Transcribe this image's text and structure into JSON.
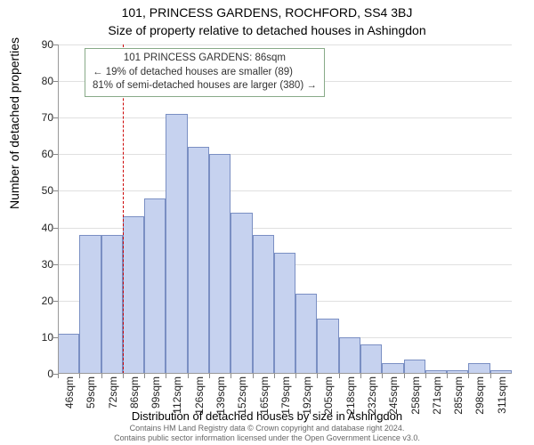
{
  "title_line1": "101, PRINCESS GARDENS, ROCHFORD, SS4 3BJ",
  "title_line2": "Size of property relative to detached houses in Ashingdon",
  "y_axis_label": "Number of detached properties",
  "x_axis_label": "Distribution of detached houses by size in Ashingdon",
  "chart": {
    "type": "histogram",
    "background_color": "#ffffff",
    "bar_fill_color": "#c6d2ef",
    "bar_border_color": "#7a8fc3",
    "grid_color": "#cccccc",
    "axis_color": "#999999",
    "marker_color": "#cc0000",
    "annotation_border_color": "#88aa88",
    "ylim": [
      0,
      90
    ],
    "ytick_step": 10,
    "x_tick_labels": [
      "46sqm",
      "59sqm",
      "72sqm",
      "86sqm",
      "99sqm",
      "112sqm",
      "126sqm",
      "139sqm",
      "152sqm",
      "165sqm",
      "179sqm",
      "192sqm",
      "205sqm",
      "218sqm",
      "232sqm",
      "245sqm",
      "258sqm",
      "271sqm",
      "285sqm",
      "298sqm",
      "311sqm"
    ],
    "x_tick_label_rotation_deg": -90,
    "bar_values": [
      11,
      38,
      38,
      43,
      48,
      71,
      62,
      60,
      44,
      38,
      33,
      22,
      15,
      10,
      8,
      3,
      4,
      1,
      1,
      3,
      1
    ],
    "marker_x_index": 3,
    "title_fontsize": 14,
    "axis_label_fontsize": 14,
    "tick_fontsize": 12
  },
  "annotation": {
    "line1": "101 PRINCESS GARDENS: 86sqm",
    "line2": "← 19% of detached houses are smaller (89)",
    "line3": "81% of semi-detached houses are larger (380) →"
  },
  "footnote_line1": "Contains HM Land Registry data © Crown copyright and database right 2024.",
  "footnote_line2": "Contains public sector information licensed under the Open Government Licence v3.0."
}
